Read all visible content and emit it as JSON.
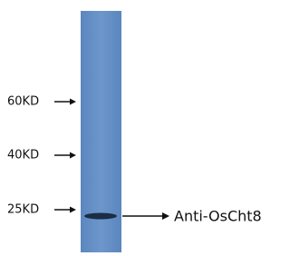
{
  "markers": [
    "60KD",
    "40KD",
    "25KD"
  ],
  "band_label": "Anti-OsCht8"
}
